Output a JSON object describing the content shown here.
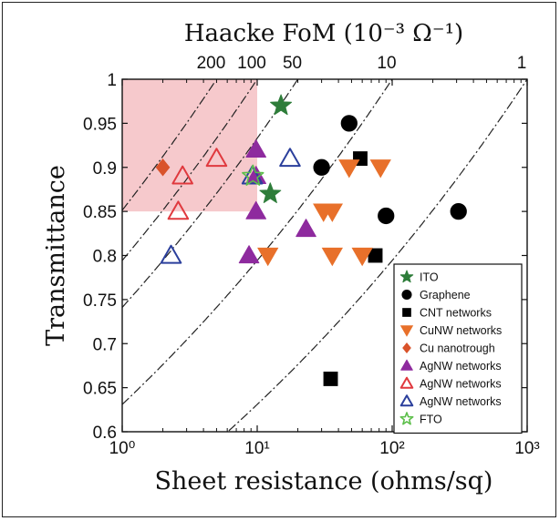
{
  "chart_data": {
    "type": "scatter",
    "title": "",
    "top_axis_title": "Haacke  FoM (10⁻³ Ω⁻¹)",
    "xlabel": "Sheet resistance (ohms/sq)",
    "ylabel": "Transmittance",
    "x_scale": "log",
    "xlim": [
      1,
      1000
    ],
    "ylim": [
      0.6,
      1.0
    ],
    "x_ticks": [
      {
        "value": 1,
        "label": "10⁰"
      },
      {
        "value": 10,
        "label": "10¹"
      },
      {
        "value": 100,
        "label": "10²"
      },
      {
        "value": 1000,
        "label": "10³"
      }
    ],
    "y_ticks": [
      {
        "value": 0.6,
        "label": "0.6"
      },
      {
        "value": 0.65,
        "label": "0.65"
      },
      {
        "value": 0.7,
        "label": "0.7"
      },
      {
        "value": 0.75,
        "label": "0.75"
      },
      {
        "value": 0.8,
        "label": "0.8"
      },
      {
        "value": 0.85,
        "label": "0.85"
      },
      {
        "value": 0.9,
        "label": "0.9"
      },
      {
        "value": 0.95,
        "label": "0.95"
      },
      {
        "value": 1.0,
        "label": "1"
      }
    ],
    "fom_lines": [
      {
        "label": "200",
        "fom": 0.2
      },
      {
        "label": "100",
        "fom": 0.1
      },
      {
        "label": "50",
        "fom": 0.05
      },
      {
        "label": "10",
        "fom": 0.01
      },
      {
        "label": "1",
        "fom": 0.001
      }
    ],
    "target_region": {
      "x": [
        1,
        10
      ],
      "y": [
        0.85,
        1.0
      ],
      "color": "#f6c9cc"
    },
    "legend_position": "bottom-right",
    "series": [
      {
        "name": "ITO",
        "marker": "star",
        "filled": true,
        "color": "#2e7d3a",
        "points": [
          [
            15,
            0.97
          ],
          [
            12.5,
            0.87
          ]
        ]
      },
      {
        "name": "Graphene",
        "marker": "circle",
        "filled": true,
        "color": "#000000",
        "points": [
          [
            48,
            0.95
          ],
          [
            30,
            0.9
          ],
          [
            90,
            0.845
          ],
          [
            310,
            0.85
          ]
        ]
      },
      {
        "name": "CNT networks",
        "marker": "square",
        "filled": true,
        "color": "#000000",
        "points": [
          [
            58,
            0.91
          ],
          [
            75,
            0.8
          ],
          [
            35,
            0.66
          ]
        ]
      },
      {
        "name": "CuNW networks",
        "marker": "triangle-down",
        "filled": true,
        "color": "#e8702a",
        "points": [
          [
            48,
            0.9
          ],
          [
            82,
            0.9
          ],
          [
            31,
            0.85
          ],
          [
            36,
            0.85
          ],
          [
            36,
            0.8
          ],
          [
            60,
            0.8
          ],
          [
            12,
            0.8
          ]
        ]
      },
      {
        "name": "Cu nanotrough",
        "marker": "diamond",
        "filled": true,
        "color": "#d9532b",
        "points": [
          [
            2.0,
            0.9
          ]
        ]
      },
      {
        "name": "AgNW networks",
        "marker": "triangle-up",
        "filled": true,
        "color": "#8e2a9e",
        "points": [
          [
            9.8,
            0.92
          ],
          [
            9.8,
            0.89
          ],
          [
            9.8,
            0.85
          ],
          [
            8.7,
            0.8
          ],
          [
            23,
            0.83
          ]
        ]
      },
      {
        "name": "AgNW networks",
        "marker": "triangle-up",
        "filled": false,
        "color": "#e0393e",
        "points": [
          [
            2.8,
            0.89
          ],
          [
            5.0,
            0.91
          ],
          [
            2.6,
            0.85
          ]
        ]
      },
      {
        "name": "AgNW networks",
        "marker": "triangle-up",
        "filled": false,
        "color": "#2b3f9c",
        "points": [
          [
            2.3,
            0.8
          ],
          [
            9.2,
            0.89
          ],
          [
            17.5,
            0.91
          ]
        ]
      },
      {
        "name": "FTO",
        "marker": "star",
        "filled": false,
        "color": "#5cbf4a",
        "points": [
          [
            9.3,
            0.89
          ]
        ]
      }
    ]
  }
}
